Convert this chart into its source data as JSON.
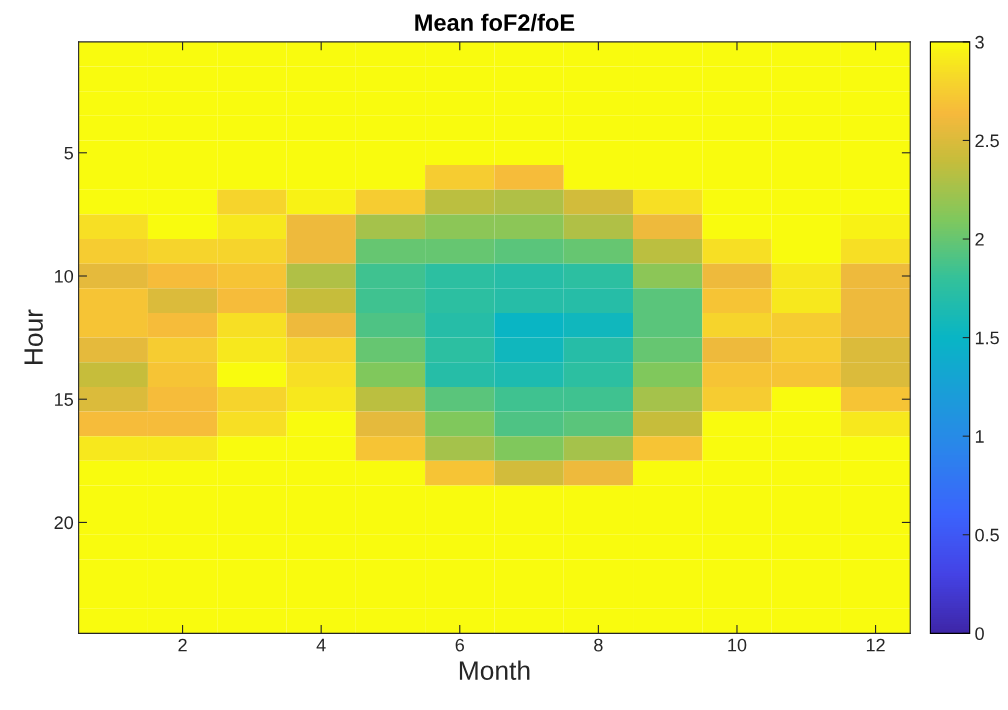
{
  "chart_data": {
    "type": "heatmap",
    "title": "Mean foF2/foE",
    "xlabel": "Month",
    "ylabel": "Hour",
    "categories": [
      null,
      "2",
      null,
      "4",
      null,
      "6",
      null,
      "8",
      null,
      "10",
      null,
      "12"
    ],
    "y_categories": [
      null,
      null,
      null,
      null,
      "5",
      null,
      null,
      null,
      null,
      "10",
      null,
      null,
      null,
      null,
      "15",
      null,
      null,
      null,
      null,
      "20",
      null,
      null,
      null,
      null
    ],
    "cells": [
      [
        3,
        3,
        3,
        3,
        3,
        3,
        3,
        3,
        3,
        3,
        3,
        3
      ],
      [
        3,
        3,
        3,
        3,
        3,
        3,
        3,
        3,
        3,
        3,
        3,
        3
      ],
      [
        3,
        3,
        3,
        3,
        3,
        3,
        3,
        3,
        3,
        3,
        3,
        3
      ],
      [
        3,
        3,
        3,
        3,
        3,
        3,
        3,
        3,
        3,
        3,
        3,
        3
      ],
      [
        3,
        3,
        3,
        3,
        3,
        3,
        3,
        3,
        3,
        3,
        3,
        3
      ],
      [
        3,
        3,
        3,
        3,
        3,
        2.75,
        2.65,
        3,
        3,
        3,
        3,
        3
      ],
      [
        3,
        3,
        2.8,
        2.95,
        2.75,
        2.35,
        2.3,
        2.45,
        2.85,
        3,
        3,
        3
      ],
      [
        2.85,
        3,
        2.9,
        2.6,
        2.25,
        2.15,
        2.15,
        2.3,
        2.6,
        3,
        3,
        2.95
      ],
      [
        2.75,
        2.8,
        2.8,
        2.6,
        2.0,
        2.0,
        1.95,
        2.0,
        2.35,
        2.85,
        3,
        2.85
      ],
      [
        2.55,
        2.65,
        2.7,
        2.3,
        1.85,
        1.75,
        1.7,
        1.75,
        2.15,
        2.6,
        2.9,
        2.6
      ],
      [
        2.7,
        2.5,
        2.65,
        2.4,
        1.85,
        1.75,
        1.7,
        1.7,
        1.95,
        2.7,
        2.9,
        2.6
      ],
      [
        2.7,
        2.65,
        2.85,
        2.6,
        1.9,
        1.7,
        1.5,
        1.55,
        1.95,
        2.8,
        2.75,
        2.6
      ],
      [
        2.55,
        2.75,
        2.9,
        2.8,
        2.0,
        1.75,
        1.55,
        1.7,
        2.0,
        2.6,
        2.75,
        2.5
      ],
      [
        2.4,
        2.7,
        3,
        2.85,
        2.1,
        1.7,
        1.65,
        1.75,
        2.1,
        2.7,
        2.7,
        2.5
      ],
      [
        2.5,
        2.65,
        2.8,
        2.9,
        2.35,
        1.95,
        1.85,
        1.85,
        2.25,
        2.75,
        3,
        2.7
      ],
      [
        2.65,
        2.65,
        2.85,
        3,
        2.55,
        2.1,
        1.9,
        1.95,
        2.4,
        3,
        3,
        2.9
      ],
      [
        2.9,
        2.9,
        3,
        3,
        2.7,
        2.25,
        2.1,
        2.25,
        2.7,
        3,
        3,
        3
      ],
      [
        3,
        3,
        3,
        3,
        3,
        2.7,
        2.45,
        2.6,
        3,
        3,
        3,
        3
      ],
      [
        3,
        3,
        3,
        3,
        3,
        3,
        3,
        3,
        3,
        3,
        3,
        3
      ],
      [
        3,
        3,
        3,
        3,
        3,
        3,
        3,
        3,
        3,
        3,
        3,
        3
      ],
      [
        3,
        3,
        3,
        3,
        3,
        3,
        3,
        3,
        3,
        3,
        3,
        3
      ],
      [
        3,
        3,
        3,
        3,
        3,
        3,
        3,
        3,
        3,
        3,
        3,
        3
      ],
      [
        3,
        3,
        3,
        3,
        3,
        3,
        3,
        3,
        3,
        3,
        3,
        3
      ],
      [
        3,
        3,
        3,
        3,
        3,
        3,
        3,
        3,
        3,
        3,
        3,
        3
      ]
    ],
    "clim": [
      0,
      3
    ],
    "cticks": [
      0,
      0.5,
      1,
      1.5,
      2,
      2.5,
      3
    ]
  }
}
